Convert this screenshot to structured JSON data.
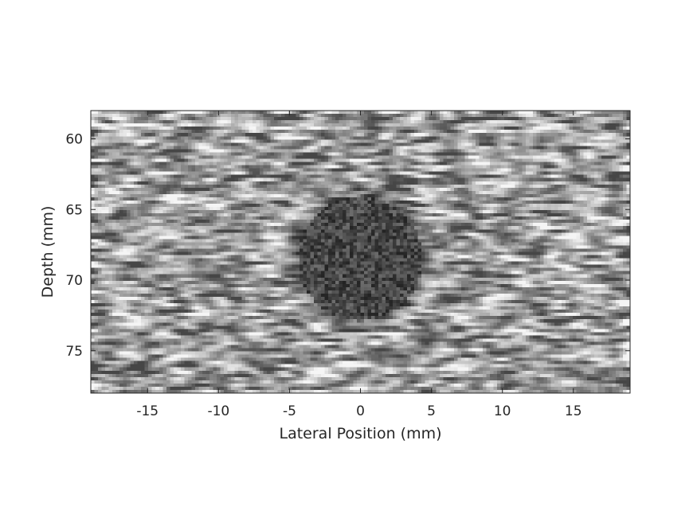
{
  "chart_data": {
    "type": "heatmap",
    "title": "",
    "xlabel": "Lateral Position (mm)",
    "ylabel": "Depth (mm)",
    "xlim": [
      -19,
      19
    ],
    "ylim": [
      58,
      78
    ],
    "y_reversed": true,
    "colormap": "gray",
    "xticks": [
      -15,
      -10,
      -5,
      0,
      5,
      10,
      15
    ],
    "yticks": [
      60,
      65,
      70,
      75
    ],
    "xtick_labels": [
      "-15",
      "-10",
      "-5",
      "0",
      "5",
      "10",
      "15"
    ],
    "ytick_labels": [
      "60",
      "65",
      "70",
      "75"
    ],
    "cyst": {
      "center_x": 0,
      "center_y": 68.5,
      "radius": 4.4
    },
    "grid": false
  }
}
